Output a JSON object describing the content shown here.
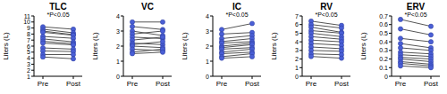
{
  "chart_data": [
    {
      "type": "line",
      "title": "TLC",
      "y_label": "Liters (L)",
      "annotation": "*P<0.05",
      "categories": [
        "Pre",
        "Post"
      ],
      "ylim": [
        1,
        11
      ],
      "yticks": [
        1,
        2,
        3,
        4,
        5,
        6,
        7,
        8,
        9,
        10,
        11
      ],
      "color": "#4a5fd6",
      "marker": "circle",
      "series": [
        {
          "values": [
            9.2,
            8.8
          ]
        },
        {
          "values": [
            8.8,
            8.2
          ]
        },
        {
          "values": [
            8.5,
            7.9
          ]
        },
        {
          "values": [
            8.3,
            7.8
          ]
        },
        {
          "values": [
            7.6,
            7.3
          ]
        },
        {
          "values": [
            7.2,
            6.7
          ]
        },
        {
          "values": [
            6.8,
            6.4
          ]
        },
        {
          "values": [
            6.5,
            6.2
          ]
        },
        {
          "values": [
            5.7,
            5.5
          ]
        },
        {
          "values": [
            5.2,
            5.1
          ]
        },
        {
          "values": [
            4.6,
            4.6
          ]
        },
        {
          "values": [
            4.2,
            3.9
          ]
        }
      ]
    },
    {
      "type": "line",
      "title": "VC",
      "y_label": "Liters (L)",
      "categories": [
        "Pre",
        "Post"
      ],
      "ylim": [
        0,
        4
      ],
      "yticks": [
        0,
        1,
        2,
        3,
        4
      ],
      "color": "#4a5fd6",
      "marker": "circle",
      "series": [
        {
          "values": [
            3.6,
            3.6
          ]
        },
        {
          "values": [
            3.3,
            3.1
          ]
        },
        {
          "values": [
            3.0,
            2.7
          ]
        },
        {
          "values": [
            2.8,
            3.0
          ]
        },
        {
          "values": [
            2.6,
            2.5
          ]
        },
        {
          "values": [
            2.4,
            2.6
          ]
        },
        {
          "values": [
            2.2,
            2.1
          ]
        },
        {
          "values": [
            2.1,
            2.3
          ]
        },
        {
          "values": [
            2.0,
            1.9
          ]
        },
        {
          "values": [
            1.8,
            1.7
          ]
        },
        {
          "values": [
            1.6,
            1.8
          ]
        },
        {
          "values": [
            1.5,
            1.6
          ]
        }
      ]
    },
    {
      "type": "line",
      "title": "IC",
      "y_label": "Liters (L)",
      "annotation": "*P<0.05",
      "categories": [
        "Pre",
        "Post"
      ],
      "ylim": [
        0,
        4
      ],
      "yticks": [
        0,
        1,
        2,
        3,
        4
      ],
      "color": "#4a5fd6",
      "marker": "circle",
      "series": [
        {
          "values": [
            3.1,
            3.5
          ]
        },
        {
          "values": [
            2.8,
            2.9
          ]
        },
        {
          "values": [
            2.5,
            2.7
          ]
        },
        {
          "values": [
            2.3,
            2.5
          ]
        },
        {
          "values": [
            2.2,
            2.3
          ]
        },
        {
          "values": [
            2.0,
            2.2
          ]
        },
        {
          "values": [
            1.9,
            2.1
          ]
        },
        {
          "values": [
            1.8,
            1.9
          ]
        },
        {
          "values": [
            1.6,
            1.8
          ]
        },
        {
          "values": [
            1.5,
            1.6
          ]
        },
        {
          "values": [
            1.3,
            1.5
          ]
        },
        {
          "values": [
            1.2,
            1.3
          ]
        }
      ]
    },
    {
      "type": "line",
      "title": "RV",
      "y_label": "Liters (L)",
      "annotation": "*P<0.05",
      "categories": [
        "Pre",
        "Post"
      ],
      "ylim": [
        0,
        7
      ],
      "yticks": [
        0,
        1,
        2,
        3,
        4,
        5,
        6,
        7
      ],
      "color": "#4a5fd6",
      "marker": "circle",
      "series": [
        {
          "values": [
            6.4,
            5.9
          ]
        },
        {
          "values": [
            6.0,
            5.6
          ]
        },
        {
          "values": [
            5.7,
            5.1
          ]
        },
        {
          "values": [
            5.3,
            5.0
          ]
        },
        {
          "values": [
            5.0,
            4.6
          ]
        },
        {
          "values": [
            4.6,
            4.3
          ]
        },
        {
          "values": [
            4.2,
            4.0
          ]
        },
        {
          "values": [
            3.8,
            3.6
          ]
        },
        {
          "values": [
            3.4,
            3.2
          ]
        },
        {
          "values": [
            3.0,
            2.9
          ]
        },
        {
          "values": [
            2.6,
            2.5
          ]
        },
        {
          "values": [
            2.3,
            2.1
          ]
        }
      ]
    },
    {
      "type": "line",
      "title": "ERV",
      "y_label": "Liters (L)",
      "annotation": "*P<0.05",
      "categories": [
        "Pre",
        "Post"
      ],
      "ylim": [
        0,
        0.7
      ],
      "yticks": [
        0,
        0.1,
        0.2,
        0.3,
        0.4,
        0.5,
        0.6,
        0.7
      ],
      "color": "#4a5fd6",
      "marker": "circle",
      "series": [
        {
          "values": [
            0.66,
            0.58
          ]
        },
        {
          "values": [
            0.55,
            0.48
          ]
        },
        {
          "values": [
            0.44,
            0.4
          ]
        },
        {
          "values": [
            0.38,
            0.33
          ]
        },
        {
          "values": [
            0.33,
            0.3
          ]
        },
        {
          "values": [
            0.28,
            0.26
          ]
        },
        {
          "values": [
            0.25,
            0.23
          ]
        },
        {
          "values": [
            0.22,
            0.2
          ]
        },
        {
          "values": [
            0.2,
            0.17
          ]
        },
        {
          "values": [
            0.17,
            0.14
          ]
        },
        {
          "values": [
            0.15,
            0.12
          ]
        },
        {
          "values": [
            0.12,
            0.1
          ]
        }
      ]
    }
  ]
}
